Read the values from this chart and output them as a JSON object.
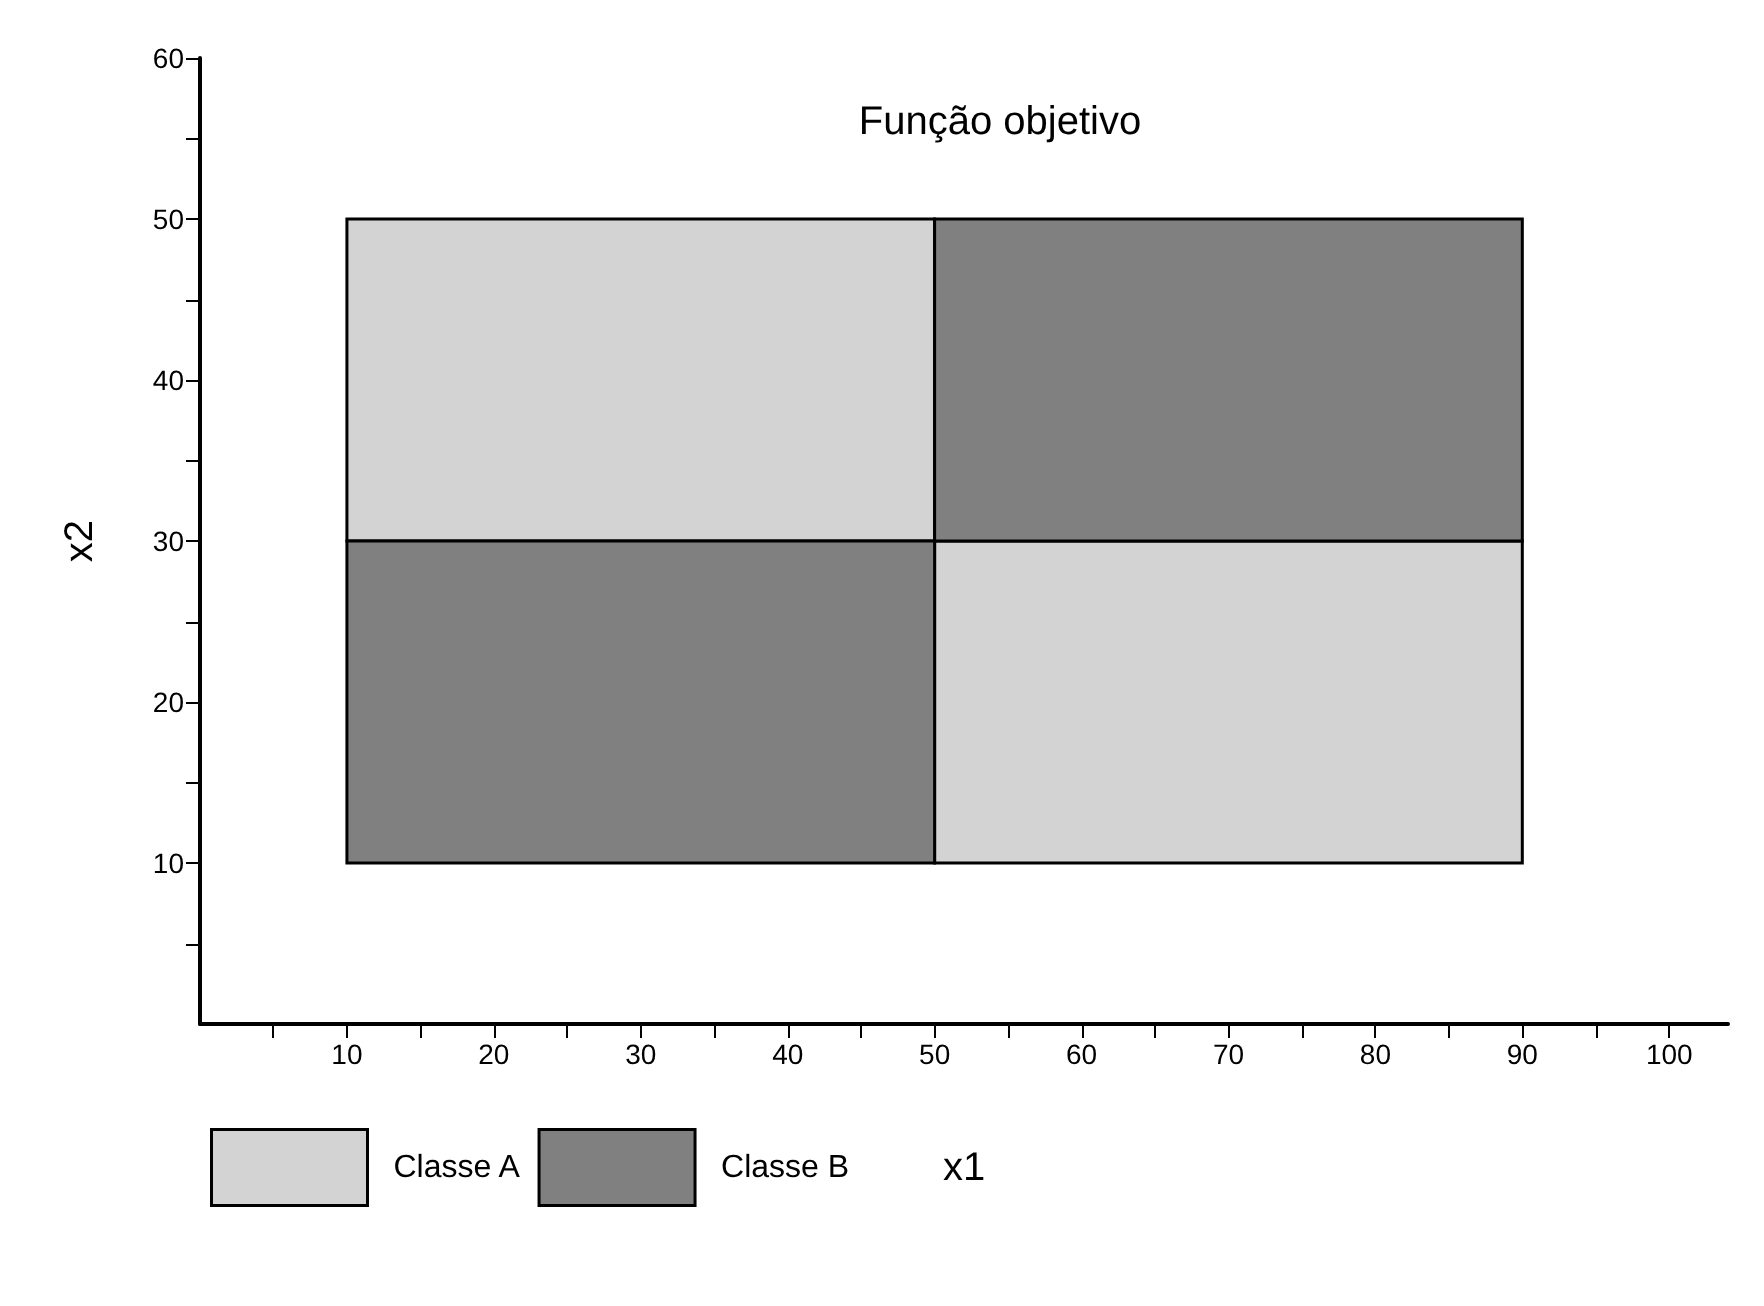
{
  "chart_data": {
    "type": "bar",
    "title": "Função objetivo",
    "xlabel": "x1",
    "ylabel": "x2",
    "x": [
      30,
      70
    ],
    "series": [
      {
        "name": "Classe A",
        "color": "#d3d3d3",
        "base": [
          30,
          10
        ],
        "values": [
          20,
          20
        ]
      },
      {
        "name": "Classe B",
        "color": "#808080",
        "base": [
          10,
          30
        ],
        "values": [
          20,
          20
        ]
      }
    ],
    "xlim": [
      0,
      104
    ],
    "ylim": [
      0,
      60
    ],
    "xticks": [
      {
        "value": 5,
        "label": null
      },
      10,
      {
        "value": 15,
        "label": null
      },
      20,
      {
        "value": 25,
        "label": null
      },
      30,
      {
        "value": 35,
        "label": null
      },
      40,
      {
        "value": 45,
        "label": null
      },
      50,
      {
        "value": 55,
        "label": null
      },
      60,
      {
        "value": 65,
        "label": null
      },
      70,
      {
        "value": 75,
        "label": null
      },
      80,
      {
        "value": 85,
        "label": null
      },
      90,
      {
        "value": 95,
        "label": null
      },
      100
    ],
    "yticks": [
      {
        "value": 5,
        "label": null
      },
      10,
      {
        "value": 15,
        "label": null
      },
      20,
      {
        "value": 25,
        "label": null
      },
      30,
      {
        "value": 35,
        "label": null
      },
      40,
      {
        "value": 45,
        "label": null
      },
      50,
      {
        "value": 55,
        "label": null
      },
      60
    ],
    "legend": "bottom left"
  }
}
